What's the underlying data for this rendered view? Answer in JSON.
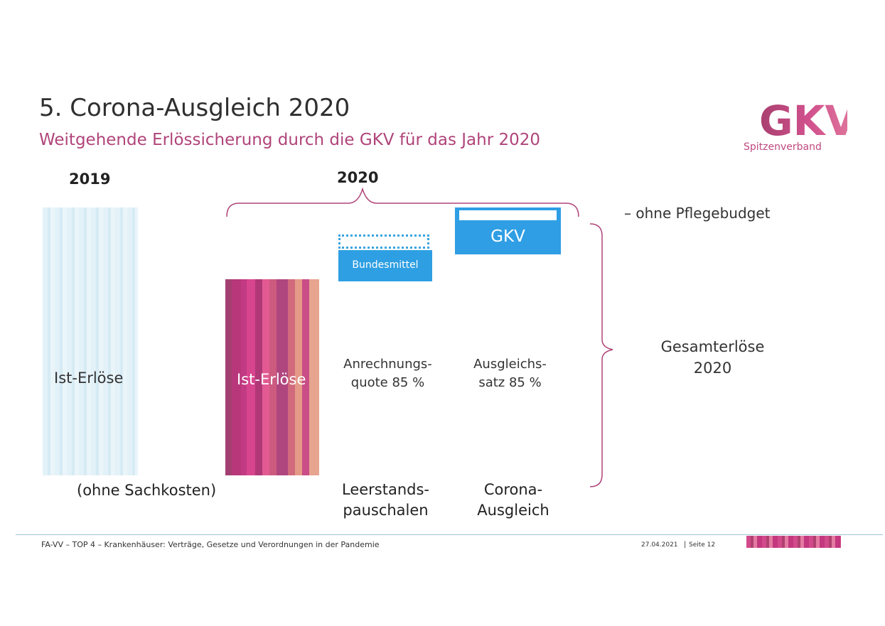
{
  "header": {
    "title": "5. Corona-Ausgleich 2020",
    "subtitle": "Weitgehende Erlössicherung durch die GKV für das Jahr 2020",
    "logo_mark": "GKV",
    "logo_text": "Spitzenverband",
    "logo_colors": {
      "primary": "#c0487f",
      "secondary": "#8e3a6e"
    }
  },
  "diagram": {
    "year_2019": "2019",
    "year_2020": "2020",
    "bar_2019_label": "Ist-Erlöse",
    "bar_2020_label": "Ist-Erlöse",
    "bundesmittel_label": "Bundesmittel",
    "gkv_label": "GKV",
    "anrechnung": {
      "line1": "Anrechnungs-",
      "line2": "quote 85 %"
    },
    "ausgleich": {
      "line1": "Ausgleichs-",
      "line2": "satz 85 %"
    },
    "leerstand": {
      "line1": "Leerstands-",
      "line2": "pauschalen"
    },
    "corona": {
      "line1": "Corona-",
      "line2": "Ausgleich"
    },
    "ohne_sachkosten": "(ohne Sachkosten)",
    "ohne_pflegebudget": "–  ohne Pflegebudget",
    "gesamt": {
      "line1": "Gesamterlöse",
      "line2": "2020"
    },
    "colors": {
      "light_bar": "#e3f1f8",
      "magenta_bar": "#c23a83",
      "blue_box": "#2f9ee4",
      "bracket": "#b0447a"
    }
  },
  "footer": {
    "text": "FA-VV – TOP 4 – Krankenhäuser: Verträge, Gesetze und Verordnungen in der Pandemie",
    "date": "27.04.2021",
    "separator": "|",
    "page": "Seite 12"
  }
}
